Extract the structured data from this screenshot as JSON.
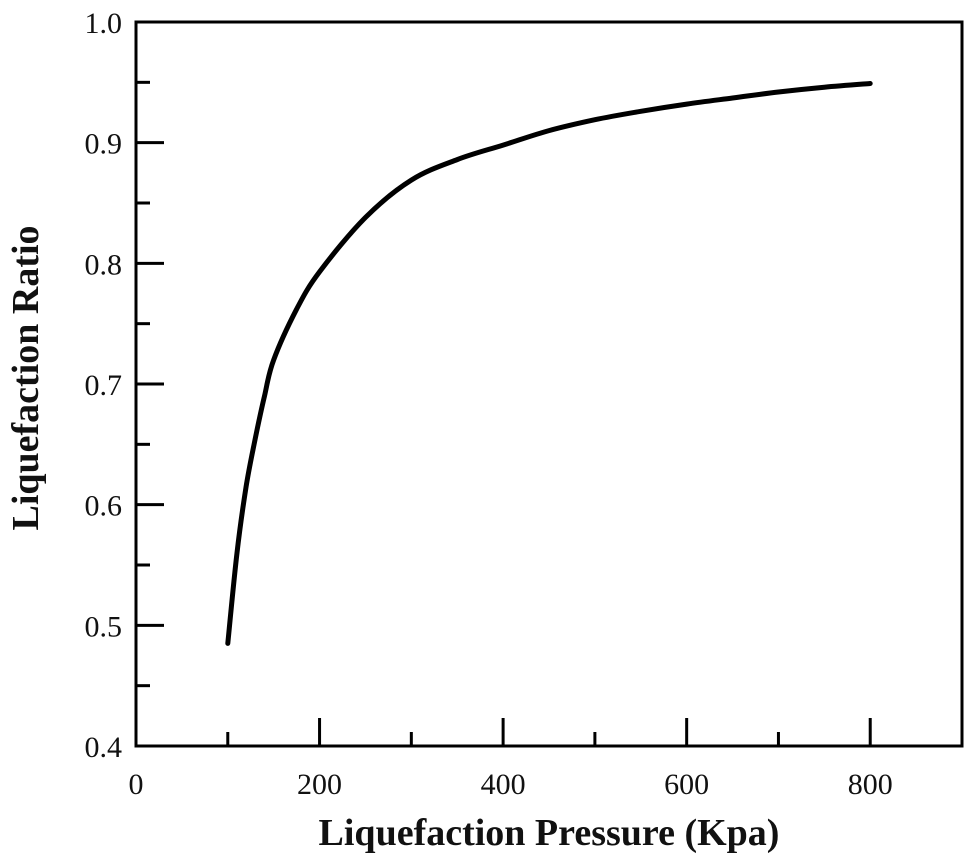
{
  "chart_data": {
    "type": "line",
    "title": "",
    "xlabel": "Liquefaction Pressure (Kpa)",
    "ylabel": "Liquefaction Ratio",
    "xlim": [
      0,
      900
    ],
    "ylim": [
      0.4,
      1.0
    ],
    "grid": false,
    "legend": null,
    "x_ticks": [
      0,
      200,
      400,
      600,
      800
    ],
    "x_tick_labels": [
      "0",
      "200",
      "400",
      "600",
      "800"
    ],
    "x_minor_ticks": [
      100,
      300,
      500,
      700
    ],
    "y_ticks": [
      0.4,
      0.5,
      0.6,
      0.7,
      0.8,
      0.9,
      1.0
    ],
    "y_tick_labels": [
      "0.4",
      "0.5",
      "0.6",
      "0.7",
      "0.8",
      "0.9",
      "1.0"
    ],
    "y_minor_ticks": [
      0.45,
      0.55,
      0.65,
      0.75,
      0.85,
      0.95
    ],
    "series": [
      {
        "name": "Liquefaction Ratio",
        "color": "#000000",
        "x": [
          100,
          110,
          120,
          130,
          140,
          150,
          175,
          200,
          250,
          300,
          350,
          400,
          450,
          500,
          550,
          600,
          650,
          700,
          750,
          800
        ],
        "y": [
          0.485,
          0.56,
          0.615,
          0.655,
          0.69,
          0.72,
          0.762,
          0.793,
          0.838,
          0.869,
          0.886,
          0.898,
          0.91,
          0.919,
          0.926,
          0.932,
          0.937,
          0.942,
          0.946,
          0.949
        ]
      }
    ]
  }
}
